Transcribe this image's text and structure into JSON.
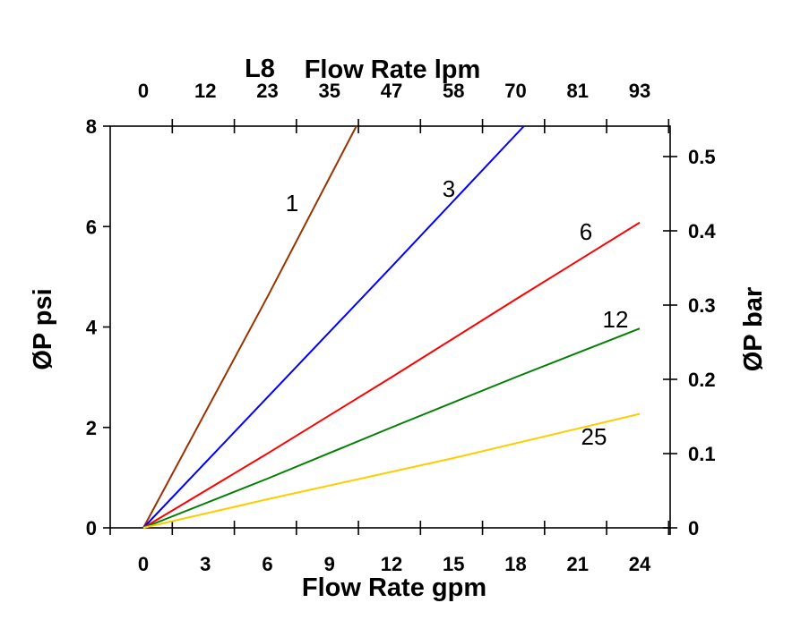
{
  "chart_data": {
    "type": "line",
    "title": "L8",
    "xlabel": "Flow Rate gpm",
    "x2label": "Flow Rate lpm",
    "ylabel": "ØP psi",
    "y2label": "ØP bar",
    "xlim": [
      -1.6,
      25.5
    ],
    "ylim": [
      0,
      8
    ],
    "y2lim": [
      0,
      0.54
    ],
    "x_ticks": [
      "0",
      "3",
      "6",
      "9",
      "12",
      "15",
      "18",
      "21",
      "24"
    ],
    "x2_ticks": [
      "0",
      "12",
      "23",
      "35",
      "47",
      "58",
      "70",
      "81",
      "93"
    ],
    "y_ticks": [
      "0",
      "2",
      "4",
      "6",
      "8"
    ],
    "y2_ticks": [
      "0",
      "0.1",
      "0.2",
      "0.3",
      "0.4",
      "0.5"
    ],
    "grid": false,
    "legend": "none (inline line labels)",
    "series": [
      {
        "name": "1",
        "color": "#993300",
        "x": [
          0,
          6,
          10.3
        ],
        "y": [
          0,
          4.6,
          8
        ]
      },
      {
        "name": "3",
        "color": "#0000ff",
        "x": [
          0,
          6,
          12,
          18.4
        ],
        "y": [
          0,
          2.6,
          5.2,
          8
        ]
      },
      {
        "name": "6",
        "color": "#ff0000",
        "x": [
          0,
          6,
          12,
          18,
          24
        ],
        "y": [
          0,
          1.48,
          3.0,
          4.55,
          6.08
        ]
      },
      {
        "name": "12",
        "color": "#008000",
        "x": [
          0,
          6,
          12,
          18,
          24
        ],
        "y": [
          0,
          0.98,
          2.0,
          3.0,
          3.97
        ]
      },
      {
        "name": "25",
        "color": "#ffcc00",
        "x": [
          0,
          6,
          15,
          24
        ],
        "y": [
          0,
          0.57,
          1.39,
          2.27
        ]
      }
    ]
  }
}
